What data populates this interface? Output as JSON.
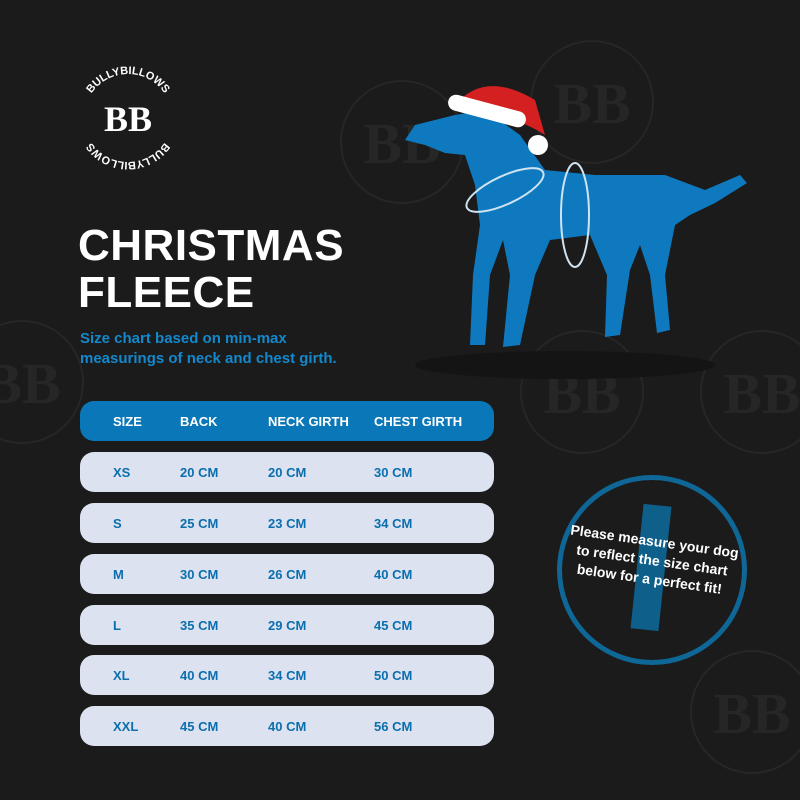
{
  "brand": {
    "name": "BULLYBILLOWS",
    "monogram": "BB"
  },
  "title_line1": "CHRISTMAS",
  "title_line2": "FLEECE",
  "subtitle_line1": "Size chart based on min-max",
  "subtitle_line2": "measurings of neck and chest girth.",
  "table": {
    "headers": [
      "SIZE",
      "BACK",
      "NECK GIRTH",
      "CHEST GIRTH"
    ],
    "rows": [
      [
        "XS",
        "20 CM",
        "20 CM",
        "30 CM"
      ],
      [
        "S",
        "25 CM",
        "23 CM",
        "34 CM"
      ],
      [
        "M",
        "30 CM",
        "26 CM",
        "40 CM"
      ],
      [
        "L",
        "35 CM",
        "29 CM",
        "45 CM"
      ],
      [
        "XL",
        "40 CM",
        "34 CM",
        "50 CM"
      ],
      [
        "XXL",
        "45 CM",
        "40 CM",
        "56 CM"
      ]
    ]
  },
  "note": {
    "text": "Please measure your dog to reflect the size chart below for a perfect fit!"
  },
  "colors": {
    "background": "#1b1b1b",
    "accent": "#0a78b8",
    "row_bg": "#dde2f0",
    "row_text": "#0b6fae",
    "hat_red": "#d42020"
  }
}
